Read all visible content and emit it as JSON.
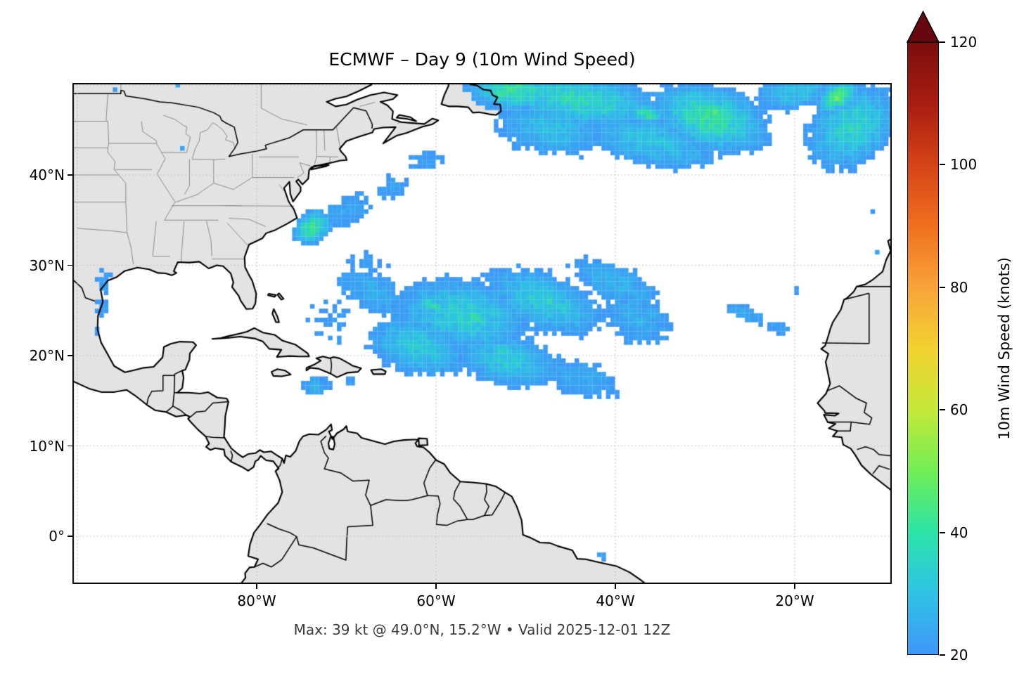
{
  "figure": {
    "title": "ECMWF – Day 9 (10m Wind Speed)",
    "caption": "Max: 39 kt @ 49.0°N, 15.2°W • Valid 2025-12-01 12Z",
    "background": "#ffffff"
  },
  "map": {
    "projection": "PlateCarree",
    "extent": {
      "lon_min": -100.55,
      "lon_max": -9.2,
      "lat_min": -5.3,
      "lat_max": 50.2
    },
    "x_ticks": [
      {
        "label": "80°W",
        "lon": -80
      },
      {
        "label": "60°W",
        "lon": -60
      },
      {
        "label": "40°W",
        "lon": -40
      },
      {
        "label": "20°W",
        "lon": -20
      }
    ],
    "y_ticks": [
      {
        "label": "40°N",
        "lat": 40
      },
      {
        "label": "30°N",
        "lat": 30
      },
      {
        "label": "20°N",
        "lat": 20
      },
      {
        "label": "10°N",
        "lat": 10
      },
      {
        "label": "0°",
        "lat": 0
      }
    ],
    "gridline_lons": [
      -100,
      -80,
      -60,
      -40,
      -20
    ],
    "gridline_lats": [
      0,
      10,
      20,
      30,
      40,
      50
    ],
    "land_color": "#e3e3e3",
    "ocean_color": "#ffffff",
    "coast_color": "#000000",
    "country_border_color": "#000000",
    "state_border_color": "#8c8c8c",
    "grid_color": "#bbbbbb"
  },
  "colorbar": {
    "label": "10m Wind Speed (knots)",
    "min": 20,
    "max": 120,
    "extend": "max",
    "arrow_color": "#67070e",
    "ticks": [
      {
        "label": "20",
        "value": 20
      },
      {
        "label": "40",
        "value": 40
      },
      {
        "label": "60",
        "value": 60
      },
      {
        "label": "80",
        "value": 80
      },
      {
        "label": "100",
        "value": 100
      },
      {
        "label": "120",
        "value": 120
      }
    ],
    "stops": [
      [
        20,
        "#3f97f8"
      ],
      [
        30,
        "#2fc3e6"
      ],
      [
        40,
        "#2ce4a6"
      ],
      [
        50,
        "#71ee55"
      ],
      [
        60,
        "#c5e93a"
      ],
      [
        70,
        "#f2d230"
      ],
      [
        80,
        "#f8a33a"
      ],
      [
        90,
        "#f0701f"
      ],
      [
        100,
        "#d54417"
      ],
      [
        110,
        "#a91d11"
      ],
      [
        120,
        "#7b0d0e"
      ]
    ]
  },
  "chart_data": {
    "type": "heatmap",
    "field": "10m wind speed (knots)",
    "model": "ECMWF",
    "lead_time": "Day 9",
    "valid": "2025-12-01 12Z",
    "units": "knots",
    "threshold_kt": 20,
    "max": {
      "value_kt": 39,
      "lat": "49.0°N",
      "lon": "15.2°W"
    },
    "summary": [
      {
        "area": "North Atlantic storm band, 38–50°N between 57°W and 9°W",
        "peak_kt": 39
      },
      {
        "area": "Subtropical Atlantic swath, 15–33°N between 76°W and 33°W",
        "peak_kt": 35
      },
      {
        "area": "Cape Hatteras offshore patch near 74°W 34°N",
        "peak_kt": 37
      },
      {
        "area": "Small streak near 25°W 24°N",
        "peak_kt": 26
      },
      {
        "area": "Texas Gulf-coast strip near 97°W 23–29°N",
        "peak_kt": 23
      },
      {
        "area": "Patch south of Hispaniola near 73°W 17°N",
        "peak_kt": 26
      }
    ],
    "field_color_stops": [
      [
        20,
        "#3e96f7"
      ],
      [
        25,
        "#37a9ef"
      ],
      [
        28,
        "#31b7ea"
      ],
      [
        31,
        "#2cc6dd"
      ],
      [
        34,
        "#2dd5bc"
      ],
      [
        36,
        "#31dd9f"
      ],
      [
        38,
        "#41e383"
      ],
      [
        39.5,
        "#55e96e"
      ],
      [
        42,
        "#79ee52"
      ]
    ],
    "wind_field": {
      "note": "anisotropic gaussian components: [lon, lat, rx_deg, ry_deg, rot_deg, peak_kt]",
      "gaussians": [
        [
          -44.0,
          48.3,
          11.0,
          3.4,
          -8,
          34
        ],
        [
          -29.5,
          46.3,
          8.0,
          4.2,
          -15,
          36
        ],
        [
          -28.5,
          46.6,
          2.6,
          1.6,
          -20,
          38.5
        ],
        [
          -51.5,
          49.3,
          6.0,
          2.6,
          -5,
          36
        ],
        [
          -50.5,
          49.8,
          2.2,
          1.1,
          0,
          37.5
        ],
        [
          -36.0,
          43.8,
          9.0,
          3.2,
          -12,
          30
        ],
        [
          -36.5,
          46.8,
          2.4,
          1.2,
          -15,
          36
        ],
        [
          -13.5,
          45.3,
          6.5,
          4.6,
          38,
          33
        ],
        [
          -20.0,
          49.2,
          5.0,
          2.2,
          10,
          30
        ],
        [
          -15.2,
          48.7,
          3.0,
          1.9,
          32,
          39
        ],
        [
          -47.5,
          45.2,
          7.0,
          3.4,
          -10,
          29
        ],
        [
          -57.0,
          24.5,
          9.0,
          4.6,
          -8,
          32
        ],
        [
          -48.0,
          26.0,
          8.0,
          3.6,
          -20,
          31
        ],
        [
          -62.0,
          21.0,
          6.5,
          3.6,
          -15,
          31
        ],
        [
          -52.0,
          19.5,
          7.0,
          3.2,
          -12,
          31
        ],
        [
          -67.0,
          27.0,
          5.0,
          2.6,
          -30,
          26
        ],
        [
          -40.0,
          28.0,
          6.0,
          2.4,
          -25,
          27
        ],
        [
          -37.5,
          24.0,
          4.5,
          3.0,
          -20,
          26
        ],
        [
          -44.0,
          17.5,
          5.5,
          2.4,
          -15,
          25
        ],
        [
          -55.5,
          24.2,
          2.4,
          1.2,
          -15,
          35
        ],
        [
          -47.5,
          26.1,
          2.0,
          1.0,
          -20,
          34
        ],
        [
          -60.5,
          25.6,
          2.2,
          1.1,
          -25,
          34
        ],
        [
          -52.6,
          20.6,
          2.4,
          1.2,
          -12,
          34
        ],
        [
          -72.0,
          23.5,
          3.0,
          3.5,
          0,
          20.5
        ],
        [
          -73.8,
          34.2,
          2.7,
          2.0,
          35,
          37
        ],
        [
          -70.0,
          36.0,
          3.6,
          2.0,
          25,
          24
        ],
        [
          -65.0,
          38.5,
          2.6,
          1.6,
          20,
          23
        ],
        [
          -61.0,
          41.5,
          2.4,
          1.4,
          10,
          23
        ],
        [
          -68.0,
          29.5,
          3.0,
          2.6,
          0,
          21
        ],
        [
          -25.5,
          24.6,
          2.7,
          1.0,
          -20,
          25.5
        ],
        [
          -21.8,
          23.1,
          1.7,
          0.9,
          -20,
          23
        ],
        [
          -96.9,
          28.3,
          1.0,
          1.5,
          20,
          23
        ],
        [
          -97.3,
          25.3,
          0.8,
          1.6,
          -10,
          22
        ],
        [
          -97.6,
          22.8,
          0.5,
          0.6,
          0,
          21.5
        ],
        [
          -73.2,
          16.6,
          1.9,
          1.3,
          0,
          26
        ],
        [
          -69.6,
          17.3,
          0.9,
          0.7,
          0,
          21.5
        ],
        [
          -41.6,
          -2.2,
          0.8,
          0.9,
          0,
          22
        ],
        [
          -10.75,
          31.45,
          0.4,
          0.4,
          0,
          23
        ],
        [
          -19.75,
          27.2,
          0.35,
          0.35,
          0,
          22
        ],
        [
          -11.25,
          36.2,
          0.35,
          0.35,
          0,
          22
        ],
        [
          -95.75,
          49.45,
          0.4,
          0.4,
          0,
          23
        ],
        [
          -88.75,
          49.95,
          0.35,
          0.35,
          0,
          22.5
        ],
        [
          -88.25,
          42.95,
          0.35,
          0.35,
          0,
          22.5
        ]
      ]
    }
  }
}
